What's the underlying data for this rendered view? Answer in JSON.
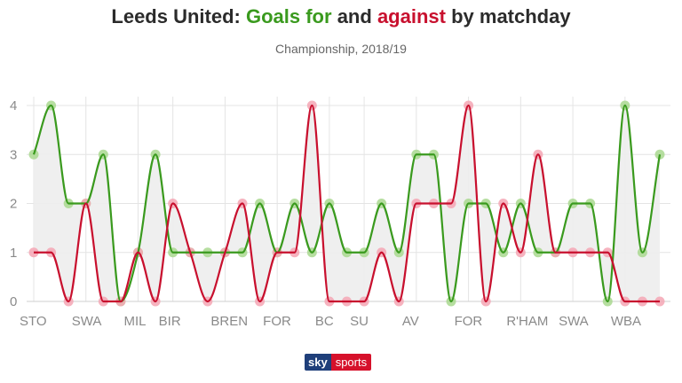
{
  "header": {
    "title_team": "Leeds United:",
    "title_for": "Goals for",
    "title_and": "and",
    "title_against": "against",
    "title_rest": "by matchday",
    "subtitle": "Championship, 2018/19"
  },
  "logo": {
    "sky": "sky",
    "sports": "sports"
  },
  "colors": {
    "for": "#3a9a1e",
    "against": "#c8102e",
    "for_dot": "#a9d88f",
    "against_dot": "#f4a6b4",
    "fill": "#ededed",
    "grid": "#e4e4e4"
  },
  "chart_data": {
    "type": "line",
    "title": "Leeds United: Goals for and against by matchday",
    "subtitle": "Championship, 2018/19",
    "xlabel": "",
    "ylabel": "",
    "ylim": [
      0,
      4
    ],
    "yticks": [
      0,
      1,
      2,
      3,
      4
    ],
    "grid": true,
    "legend": "title",
    "tick_labels": [
      {
        "index": 0,
        "label": "STO"
      },
      {
        "index": 3,
        "label": "SWA"
      },
      {
        "index": 6,
        "label": "MIL"
      },
      {
        "index": 8,
        "label": "BIR"
      },
      {
        "index": 11,
        "label": "BREN"
      },
      {
        "index": 14,
        "label": "FOR"
      },
      {
        "index": 17,
        "label": "BC"
      },
      {
        "index": 19,
        "label": "SU"
      },
      {
        "index": 22,
        "label": "AV"
      },
      {
        "index": 25,
        "label": "FOR"
      },
      {
        "index": 28,
        "label": "R'HAM"
      },
      {
        "index": 31,
        "label": "SWA"
      },
      {
        "index": 34,
        "label": "WBA"
      }
    ],
    "series": [
      {
        "name": "Goals for",
        "values": [
          3,
          4,
          2,
          2,
          3,
          0,
          1,
          3,
          1,
          1,
          1,
          1,
          1,
          2,
          1,
          2,
          1,
          2,
          1,
          1,
          2,
          1,
          3,
          3,
          0,
          2,
          2,
          1,
          2,
          1,
          1,
          2,
          2,
          0,
          4,
          1,
          3
        ]
      },
      {
        "name": "against",
        "values": [
          1,
          1,
          0,
          2,
          0,
          0,
          1,
          0,
          2,
          1,
          0,
          1,
          2,
          0,
          1,
          1,
          4,
          0,
          0,
          0,
          1,
          0,
          2,
          2,
          2,
          4,
          0,
          2,
          1,
          3,
          1,
          1,
          1,
          1,
          0,
          0,
          0
        ]
      }
    ]
  }
}
